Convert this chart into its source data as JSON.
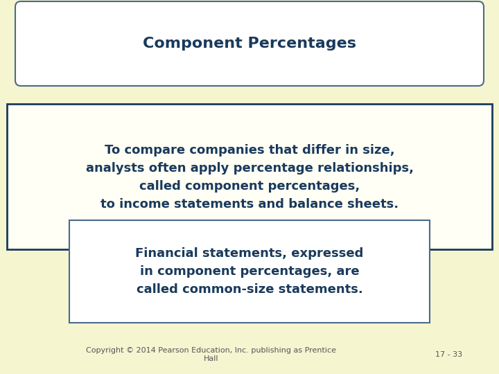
{
  "bg_color": "#f5f5d0",
  "title_text": "Component Percentages",
  "title_color": "#1a3a5c",
  "title_box_bg": "#ffffff",
  "title_box_edge": "#4a6a8a",
  "main_text_line1": "To compare companies that differ in size,",
  "main_text_line2": "analysts often apply percentage relationships,",
  "main_text_line3": "called component percentages,",
  "main_text_line4": "to income statements and balance sheets.",
  "main_box_bg": "#fffff5",
  "main_box_edge": "#1a3a5c",
  "sub_text_line1": "Financial statements, expressed",
  "sub_text_line2": "in component percentages, are",
  "sub_text_line3": "called common-size statements.",
  "sub_box_bg": "#ffffff",
  "sub_box_edge": "#4a6a8a",
  "text_color": "#1a3a5c",
  "footer_left": "Copyright © 2014 Pearson Education, Inc. publishing as Prentice\nHall",
  "footer_right": "17 - 33",
  "footer_color": "#555555",
  "footer_fontsize": 8,
  "title_fontsize": 16,
  "main_fontsize": 13,
  "sub_fontsize": 13
}
